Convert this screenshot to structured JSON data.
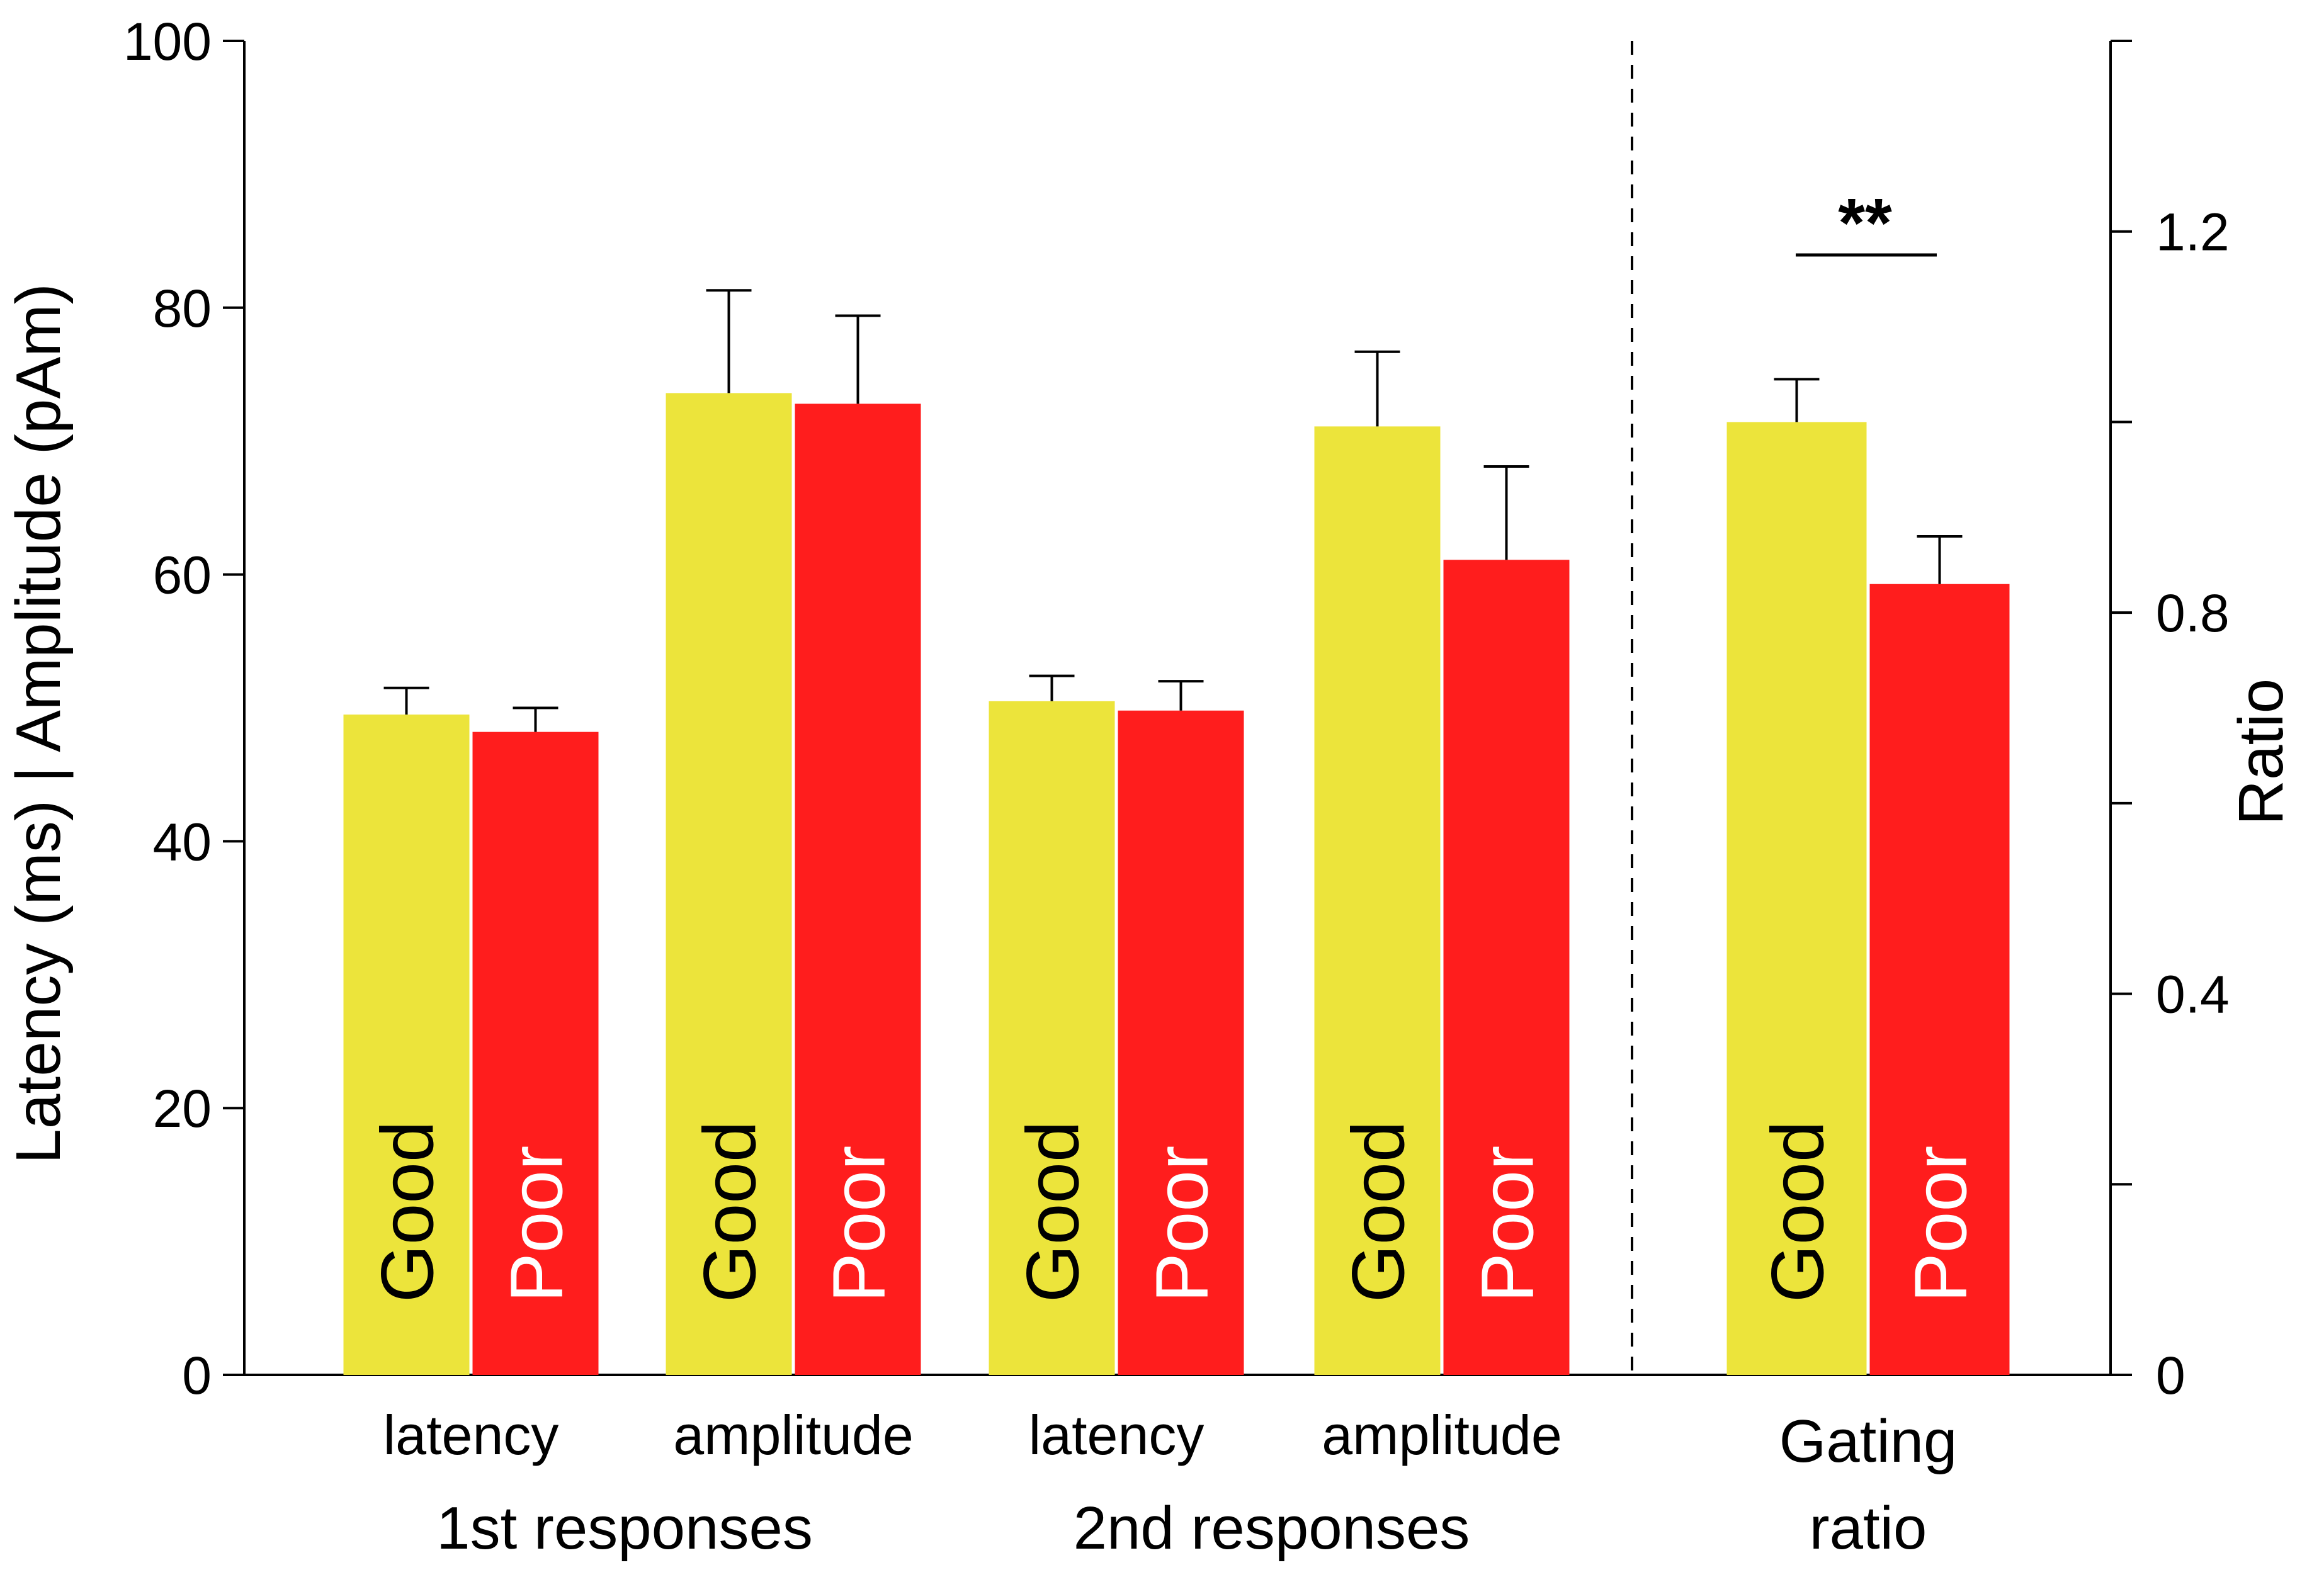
{
  "chart_data": {
    "type": "bar",
    "y_left": {
      "label": "Latency (ms) | Amplitude (pAm)",
      "range": [
        0,
        100
      ],
      "ticks": [
        0,
        20,
        40,
        60,
        80,
        100
      ],
      "tick_labels": [
        "0",
        "20",
        "40",
        "60",
        "80",
        "100"
      ]
    },
    "y_right": {
      "label": "Ratio",
      "range": [
        0,
        1.4
      ],
      "ticks": [
        0,
        0.2,
        0.4,
        0.6,
        0.8,
        1.0,
        1.2,
        1.4
      ],
      "tick_labels": [
        "0",
        "",
        "0.4",
        "",
        "0.8",
        "",
        "1.2",
        ""
      ]
    },
    "colors": {
      "Good": "#ece43b",
      "Poor": "#ff1d1d",
      "good_text": "#000000",
      "poor_text": "#ffffff"
    },
    "bar_text": {
      "good": "Good",
      "poor": "Poor"
    },
    "groups": [
      {
        "label": "1st responses",
        "categories": [
          {
            "label": "latency",
            "axis": "left",
            "values": {
              "Good": 49.5,
              "Poor": 48.2
            },
            "errors": {
              "Good": 2.0,
              "Poor": 1.8
            }
          },
          {
            "label": "amplitude",
            "axis": "left",
            "values": {
              "Good": 73.6,
              "Poor": 72.8
            },
            "errors": {
              "Good": 7.7,
              "Poor": 6.6
            }
          }
        ]
      },
      {
        "label": "2nd responses",
        "categories": [
          {
            "label": "latency",
            "axis": "left",
            "values": {
              "Good": 50.5,
              "Poor": 49.8
            },
            "errors": {
              "Good": 1.9,
              "Poor": 2.2
            }
          },
          {
            "label": "amplitude",
            "axis": "left",
            "values": {
              "Good": 71.1,
              "Poor": 61.1
            },
            "errors": {
              "Good": 5.6,
              "Poor": 7.0
            }
          }
        ]
      }
    ],
    "gating": {
      "label_lines": [
        "Gating",
        "ratio"
      ],
      "axis": "right",
      "values": {
        "Good": 1.0,
        "Poor": 0.83
      },
      "errors": {
        "Good": 0.045,
        "Poor": 0.05
      },
      "significance": "**"
    }
  }
}
